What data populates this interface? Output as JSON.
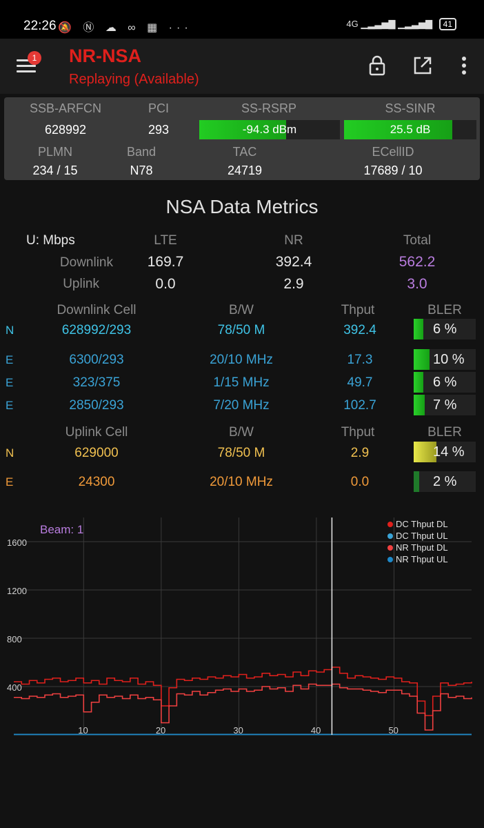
{
  "status_bar": {
    "time": "22:26",
    "icons": "🔕 Ⓝ ☁ ∞ ▦ ···",
    "network": "4G",
    "battery": "41"
  },
  "toolbar": {
    "notification_count": "1",
    "title": "NR-NSA",
    "subtitle": "Replaying (Available)"
  },
  "cell_info": {
    "ssb_arfcn_label": "SSB-ARFCN",
    "ssb_arfcn": "628992",
    "pci_label": "PCI",
    "pci": "293",
    "rsrp_label": "SS-RSRP",
    "rsrp": "-94.3 dBm",
    "rsrp_level": 0.62,
    "sinr_label": "SS-SINR",
    "sinr": "25.5 dB",
    "sinr_level": 0.82,
    "plmn_label": "PLMN",
    "plmn": "234 / 15",
    "band_label": "Band",
    "band": "N78",
    "tac_label": "TAC",
    "tac": "24719",
    "ecellid_label": "ECellID",
    "ecellid": "17689 / 10"
  },
  "metrics": {
    "title": "NSA Data Metrics",
    "unit": "U: Mbps",
    "col_lte": "LTE",
    "col_nr": "NR",
    "col_total": "Total",
    "downlink_label": "Downlink",
    "dl_lte": "169.7",
    "dl_nr": "392.4",
    "dl_total": "562.2",
    "uplink_label": "Uplink",
    "ul_lte": "0.0",
    "ul_nr": "2.9",
    "ul_total": "3.0"
  },
  "downlink_cells": {
    "headers": [
      "Downlink Cell",
      "B/W",
      "Thput",
      "BLER"
    ],
    "rows": [
      {
        "type": "N",
        "cell": "628992/293",
        "bw": "78/50 M",
        "thput": "392.4",
        "bler": "6 %",
        "bler_value": 0.06
      },
      {
        "type": "E",
        "cell": "6300/293",
        "bw": "20/10 MHz",
        "thput": "17.3",
        "bler": "10 %",
        "bler_value": 0.1
      },
      {
        "type": "E",
        "cell": "323/375",
        "bw": "1/15 MHz",
        "thput": "49.7",
        "bler": "6 %",
        "bler_value": 0.06
      },
      {
        "type": "E",
        "cell": "2850/293",
        "bw": "7/20 MHz",
        "thput": "102.7",
        "bler": "7 %",
        "bler_value": 0.07
      }
    ]
  },
  "uplink_cells": {
    "headers": [
      "Uplink Cell",
      "B/W",
      "Thput",
      "BLER"
    ],
    "rows": [
      {
        "type": "N",
        "cell": "629000",
        "bw": "78/50 M",
        "thput": "2.9",
        "bler": "14 %",
        "bler_value": 0.14
      },
      {
        "type": "E",
        "cell": "24300",
        "bw": "20/10 MHz",
        "thput": "0.0",
        "bler": "2 %",
        "bler_value": 0.02
      }
    ]
  },
  "chart_data": {
    "type": "line",
    "annotation": "Beam: 1",
    "y_ticks": [
      "400",
      "800",
      "1200",
      "1600"
    ],
    "x_ticks": [
      "10",
      "20",
      "30",
      "40",
      "50"
    ],
    "ylim": [
      0,
      1800
    ],
    "xlim": [
      1,
      60
    ],
    "cursor_x": 42,
    "legend": [
      {
        "name": "DC Thput DL",
        "color": "#e0201c"
      },
      {
        "name": "DC Thput UL",
        "color": "#3aa3d6"
      },
      {
        "name": "NR Thput DL",
        "color": "#f04040"
      },
      {
        "name": "NR Thput UL",
        "color": "#1e88c8"
      }
    ],
    "series": [
      {
        "name": "DC Thput DL",
        "color": "#e0201c",
        "x": [
          1,
          2,
          3,
          4,
          5,
          6,
          7,
          8,
          9,
          10,
          11,
          12,
          13,
          14,
          15,
          16,
          17,
          18,
          19,
          20,
          21,
          22,
          23,
          24,
          25,
          26,
          27,
          28,
          29,
          30,
          31,
          32,
          33,
          34,
          35,
          36,
          37,
          38,
          39,
          40,
          41,
          42,
          43,
          44,
          45,
          46,
          47,
          48,
          49,
          50,
          51,
          52,
          53,
          54,
          55,
          56,
          57,
          58,
          59,
          60
        ],
        "values": [
          440,
          420,
          450,
          430,
          460,
          470,
          440,
          450,
          470,
          430,
          450,
          420,
          470,
          450,
          440,
          470,
          420,
          440,
          410,
          240,
          390,
          460,
          450,
          470,
          460,
          480,
          470,
          490,
          480,
          500,
          470,
          480,
          510,
          490,
          500,
          480,
          520,
          490,
          530,
          520,
          540,
          560,
          510,
          470,
          490,
          480,
          470,
          460,
          480,
          470,
          440,
          430,
          280,
          160,
          320,
          430,
          410,
          420,
          430,
          440
        ]
      },
      {
        "name": "NR Thput DL",
        "color": "#f04040",
        "x": [
          1,
          2,
          3,
          4,
          5,
          6,
          7,
          8,
          9,
          10,
          11,
          12,
          13,
          14,
          15,
          16,
          17,
          18,
          19,
          20,
          21,
          22,
          23,
          24,
          25,
          26,
          27,
          28,
          29,
          30,
          31,
          32,
          33,
          34,
          35,
          36,
          37,
          38,
          39,
          40,
          41,
          42,
          43,
          44,
          45,
          46,
          47,
          48,
          49,
          50,
          51,
          52,
          53,
          54,
          55,
          56,
          57,
          58,
          59,
          60
        ],
        "values": [
          310,
          300,
          320,
          310,
          330,
          340,
          310,
          320,
          330,
          190,
          270,
          330,
          310,
          320,
          300,
          330,
          300,
          310,
          290,
          100,
          240,
          340,
          330,
          360,
          330,
          350,
          370,
          380,
          360,
          380,
          360,
          370,
          400,
          380,
          390,
          360,
          410,
          380,
          420,
          410,
          410,
          420,
          390,
          380,
          380,
          370,
          360,
          350,
          370,
          370,
          340,
          320,
          180,
          40,
          200,
          340,
          310,
          320,
          300,
          310
        ]
      },
      {
        "name": "DC Thput UL",
        "color": "#3aa3d6",
        "x": [
          1,
          60
        ],
        "values": [
          3,
          3
        ]
      },
      {
        "name": "NR Thput UL",
        "color": "#1e88c8",
        "x": [
          1,
          60
        ],
        "values": [
          3,
          3
        ]
      }
    ]
  }
}
